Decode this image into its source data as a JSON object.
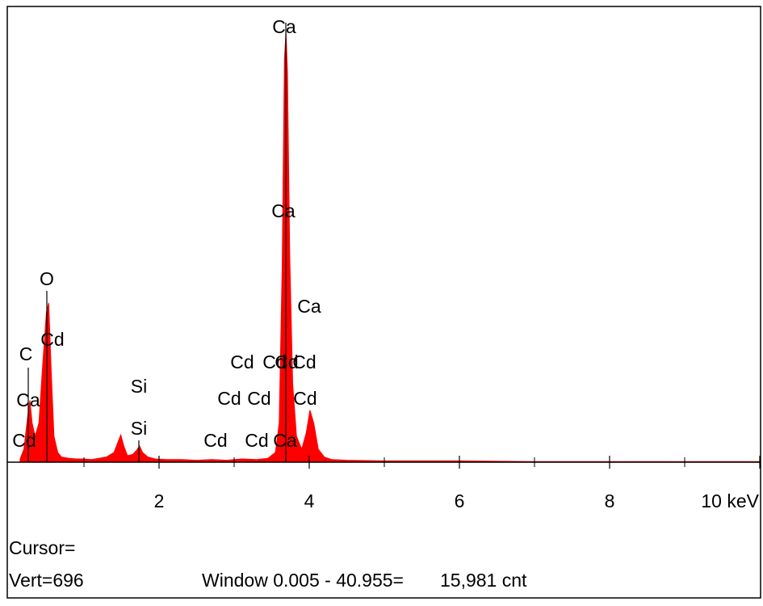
{
  "chart_data": {
    "type": "area",
    "color": "#ff0000",
    "xlim": [
      0,
      10
    ],
    "ylim": [
      0,
      696
    ],
    "xticks": [
      {
        "value": 2,
        "label": "2"
      },
      {
        "value": 4,
        "label": "4"
      },
      {
        "value": 6,
        "label": "6"
      },
      {
        "value": 8,
        "label": "8"
      },
      {
        "value": 10,
        "label": "10 keV"
      }
    ],
    "xminor_ticks": [
      1,
      3,
      5,
      7,
      9
    ],
    "x": [
      0.15,
      0.2,
      0.25,
      0.28,
      0.31,
      0.35,
      0.4,
      0.45,
      0.5,
      0.53,
      0.56,
      0.6,
      0.65,
      0.7,
      0.8,
      0.9,
      1.0,
      1.1,
      1.2,
      1.3,
      1.4,
      1.45,
      1.49,
      1.53,
      1.58,
      1.65,
      1.7,
      1.74,
      1.78,
      1.85,
      1.95,
      2.1,
      2.3,
      2.5,
      2.7,
      2.9,
      3.1,
      3.3,
      3.45,
      3.55,
      3.6,
      3.64,
      3.67,
      3.69,
      3.71,
      3.74,
      3.78,
      3.83,
      3.9,
      3.96,
      4.01,
      4.06,
      4.12,
      4.2,
      4.3,
      4.5,
      5,
      6,
      7,
      8,
      9,
      10
    ],
    "values": [
      5,
      20,
      70,
      95,
      60,
      40,
      60,
      150,
      230,
      245,
      150,
      40,
      15,
      8,
      6,
      5,
      5,
      4,
      6,
      8,
      15,
      30,
      42,
      25,
      10,
      12,
      18,
      25,
      15,
      8,
      5,
      4,
      4,
      3,
      4,
      3,
      5,
      4,
      6,
      15,
      60,
      300,
      620,
      661,
      600,
      320,
      120,
      40,
      20,
      45,
      80,
      60,
      20,
      8,
      4,
      3,
      2,
      2,
      1,
      1,
      1,
      1
    ],
    "peak_labels": [
      "Ca",
      "Ca",
      "Ca",
      "O",
      "Cd",
      "C",
      "Ca",
      "Cd",
      "Si",
      "Si",
      "Cd",
      "Cd",
      "Cd",
      "Cd",
      "Cd",
      "Cd",
      "Cd",
      "Cd",
      "Ca",
      "Cd"
    ]
  },
  "status": {
    "cursor": "Cursor=",
    "vert": "Vert=696",
    "window": "Window 0.005 - 40.955=",
    "counts": "15,981 cnt"
  }
}
